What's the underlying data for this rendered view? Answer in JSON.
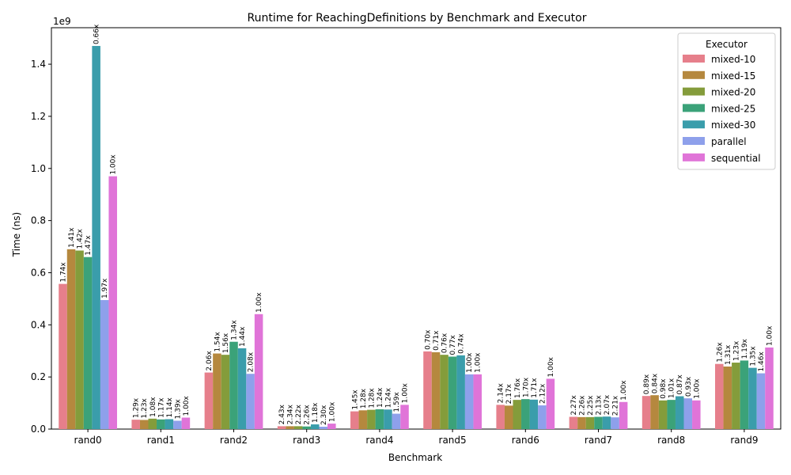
{
  "chart_data": {
    "type": "bar",
    "title": "Runtime for ReachingDefinitions by Benchmark and Executor",
    "xlabel": "Benchmark",
    "ylabel": "Time (ns)",
    "y_offset_label": "1e9",
    "ylim": [
      0,
      1.54
    ],
    "yticks": [
      "0.0",
      "0.2",
      "0.4",
      "0.6",
      "0.8",
      "1.0",
      "1.2",
      "1.4"
    ],
    "legend": {
      "title": "Executor",
      "placement": "top-right"
    },
    "categories": [
      "rand0",
      "rand1",
      "rand2",
      "rand3",
      "rand4",
      "rand5",
      "rand6",
      "rand7",
      "rand8",
      "rand9"
    ],
    "series": [
      {
        "name": "mixed-10",
        "color": "#e67f8b",
        "values": [
          0.557,
          0.036,
          0.217,
          0.011,
          0.068,
          0.298,
          0.093,
          0.047,
          0.127,
          0.25
        ],
        "labels": [
          "1.74x",
          "1.29x",
          "2.06x",
          "2.43x",
          "1.45x",
          "0.70x",
          "2.14x",
          "2.27x",
          "0.89x",
          "1.26x"
        ]
      },
      {
        "name": "mixed-15",
        "color": "#b5883e",
        "values": [
          0.69,
          0.035,
          0.29,
          0.011,
          0.072,
          0.295,
          0.09,
          0.046,
          0.13,
          0.24
        ],
        "labels": [
          "1.41x",
          "1.23x",
          "1.54x",
          "2.34x",
          "1.28x",
          "0.71x",
          "2.17x",
          "2.26x",
          "0.84x",
          "1.31x"
        ]
      },
      {
        "name": "mixed-20",
        "color": "#849c3b",
        "values": [
          0.685,
          0.04,
          0.285,
          0.011,
          0.074,
          0.285,
          0.112,
          0.046,
          0.11,
          0.255
        ],
        "labels": [
          "1.42x",
          "1.08x",
          "1.56x",
          "2.22x",
          "1.28x",
          "0.76x",
          "1.76x",
          "2.25x",
          "0.98x",
          "1.23x"
        ]
      },
      {
        "name": "mixed-25",
        "color": "#3ba279",
        "values": [
          0.66,
          0.037,
          0.335,
          0.01,
          0.076,
          0.278,
          0.115,
          0.047,
          0.112,
          0.263
        ],
        "labels": [
          "1.47x",
          "1.17x",
          "1.34x",
          "2.26x",
          "1.24x",
          "0.77x",
          "1.70x",
          "2.13x",
          "1.01x",
          "1.19x"
        ]
      },
      {
        "name": "mixed-30",
        "color": "#3a9dab",
        "values": [
          1.47,
          0.038,
          0.31,
          0.018,
          0.075,
          0.283,
          0.113,
          0.048,
          0.126,
          0.235
        ],
        "labels": [
          "0.66x",
          "1.14x",
          "1.44x",
          "1.18x",
          "1.24x",
          "0.74x",
          "1.71x",
          "2.07x",
          "0.87x",
          "1.35x"
        ]
      },
      {
        "name": "parallel",
        "color": "#8ea0eb",
        "values": [
          0.495,
          0.032,
          0.212,
          0.009,
          0.059,
          0.21,
          0.091,
          0.045,
          0.118,
          0.214
        ],
        "labels": [
          "1.97x",
          "1.39x",
          "2.08x",
          "2.30x",
          "1.59x",
          "1.00x",
          "2.12x",
          "2.21x",
          "0.93x",
          "1.46x"
        ]
      },
      {
        "name": "sequential",
        "color": "#e074d8",
        "values": [
          0.97,
          0.044,
          0.441,
          0.021,
          0.093,
          0.21,
          0.193,
          0.104,
          0.11,
          0.313
        ],
        "labels": [
          "1.00x",
          "1.00x",
          "1.00x",
          "1.00x",
          "1.00x",
          "1.00x",
          "1.00x",
          "1.00x",
          "1.00x",
          "1.00x"
        ]
      }
    ]
  }
}
